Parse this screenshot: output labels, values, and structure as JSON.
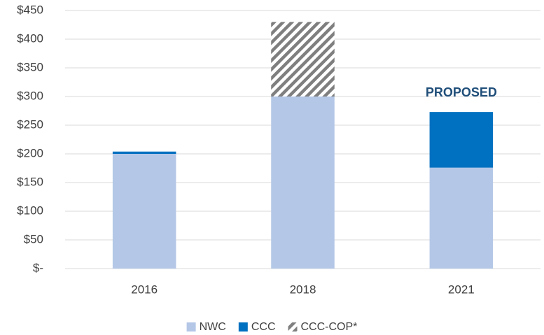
{
  "chart_data": {
    "type": "stacked_bar",
    "annotation": "PROPOSED",
    "categories": [
      "2016",
      "2018",
      "2021"
    ],
    "series": [
      {
        "name": "NWC",
        "color": "#b4c7e7",
        "values": [
          200,
          300,
          176
        ]
      },
      {
        "name": "CCC",
        "color": "#0070c0",
        "values": [
          4,
          0,
          97
        ]
      },
      {
        "name": "CCC-COP*",
        "color": "#7f7f7f",
        "hatch": true,
        "values": [
          0,
          130,
          0
        ]
      }
    ],
    "ylim": [
      0,
      450
    ],
    "yticks": [
      {
        "value": 0,
        "label": "$-"
      },
      {
        "value": 50,
        "label": "$50"
      },
      {
        "value": 100,
        "label": "$100"
      },
      {
        "value": 150,
        "label": "$150"
      },
      {
        "value": 200,
        "label": "$200"
      },
      {
        "value": 250,
        "label": "$250"
      },
      {
        "value": 300,
        "label": "$300"
      },
      {
        "value": 350,
        "label": "$350"
      },
      {
        "value": 400,
        "label": "$400"
      },
      {
        "value": 450,
        "label": "$450"
      }
    ],
    "grid": true,
    "legend": "bottom"
  }
}
